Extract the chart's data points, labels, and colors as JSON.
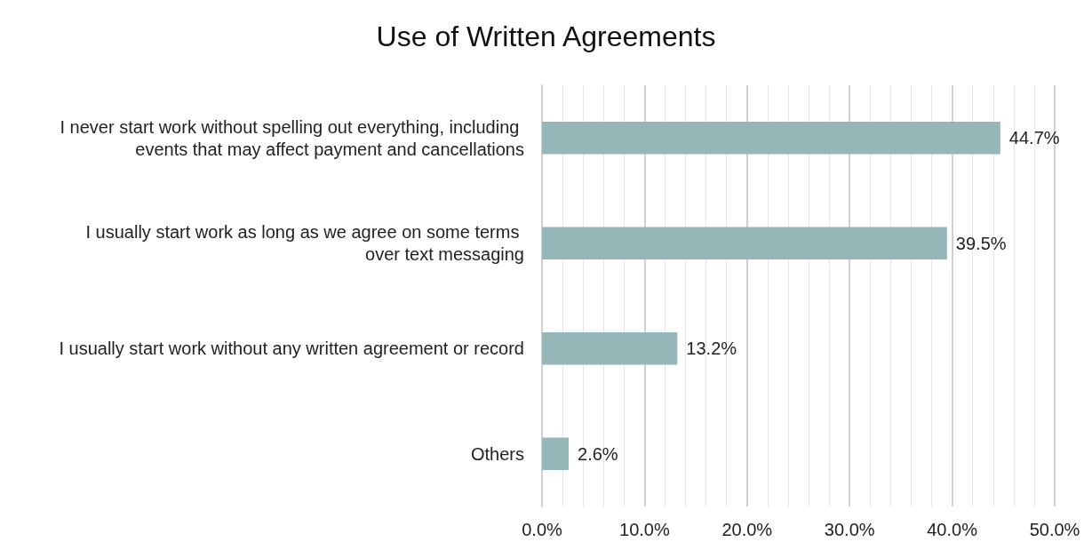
{
  "chart_data": {
    "type": "bar",
    "orientation": "horizontal",
    "title": "Use of Written Agreements",
    "categories": [
      "I never start work without spelling out everything, including events that may affect payment and cancellations",
      "I usually start work as long as we agree on some terms over text messaging",
      "I usually start work without any written agreement or record",
      "Others"
    ],
    "values": [
      44.7,
      39.5,
      13.2,
      2.6
    ],
    "value_labels": [
      "44.7%",
      "39.5%",
      "13.2%",
      "2.6%"
    ],
    "color": "#95b7b8",
    "xlim": [
      0,
      50
    ],
    "xticks": [
      {
        "value": 0,
        "label": "0.0%"
      },
      {
        "value": 10,
        "label": "10.0%"
      },
      {
        "value": 20,
        "label": "20.0%"
      },
      {
        "value": 30,
        "label": "30.0%"
      },
      {
        "value": 40,
        "label": "40.0%"
      },
      {
        "value": 50,
        "label": "50.0%"
      }
    ],
    "grid": "x"
  }
}
